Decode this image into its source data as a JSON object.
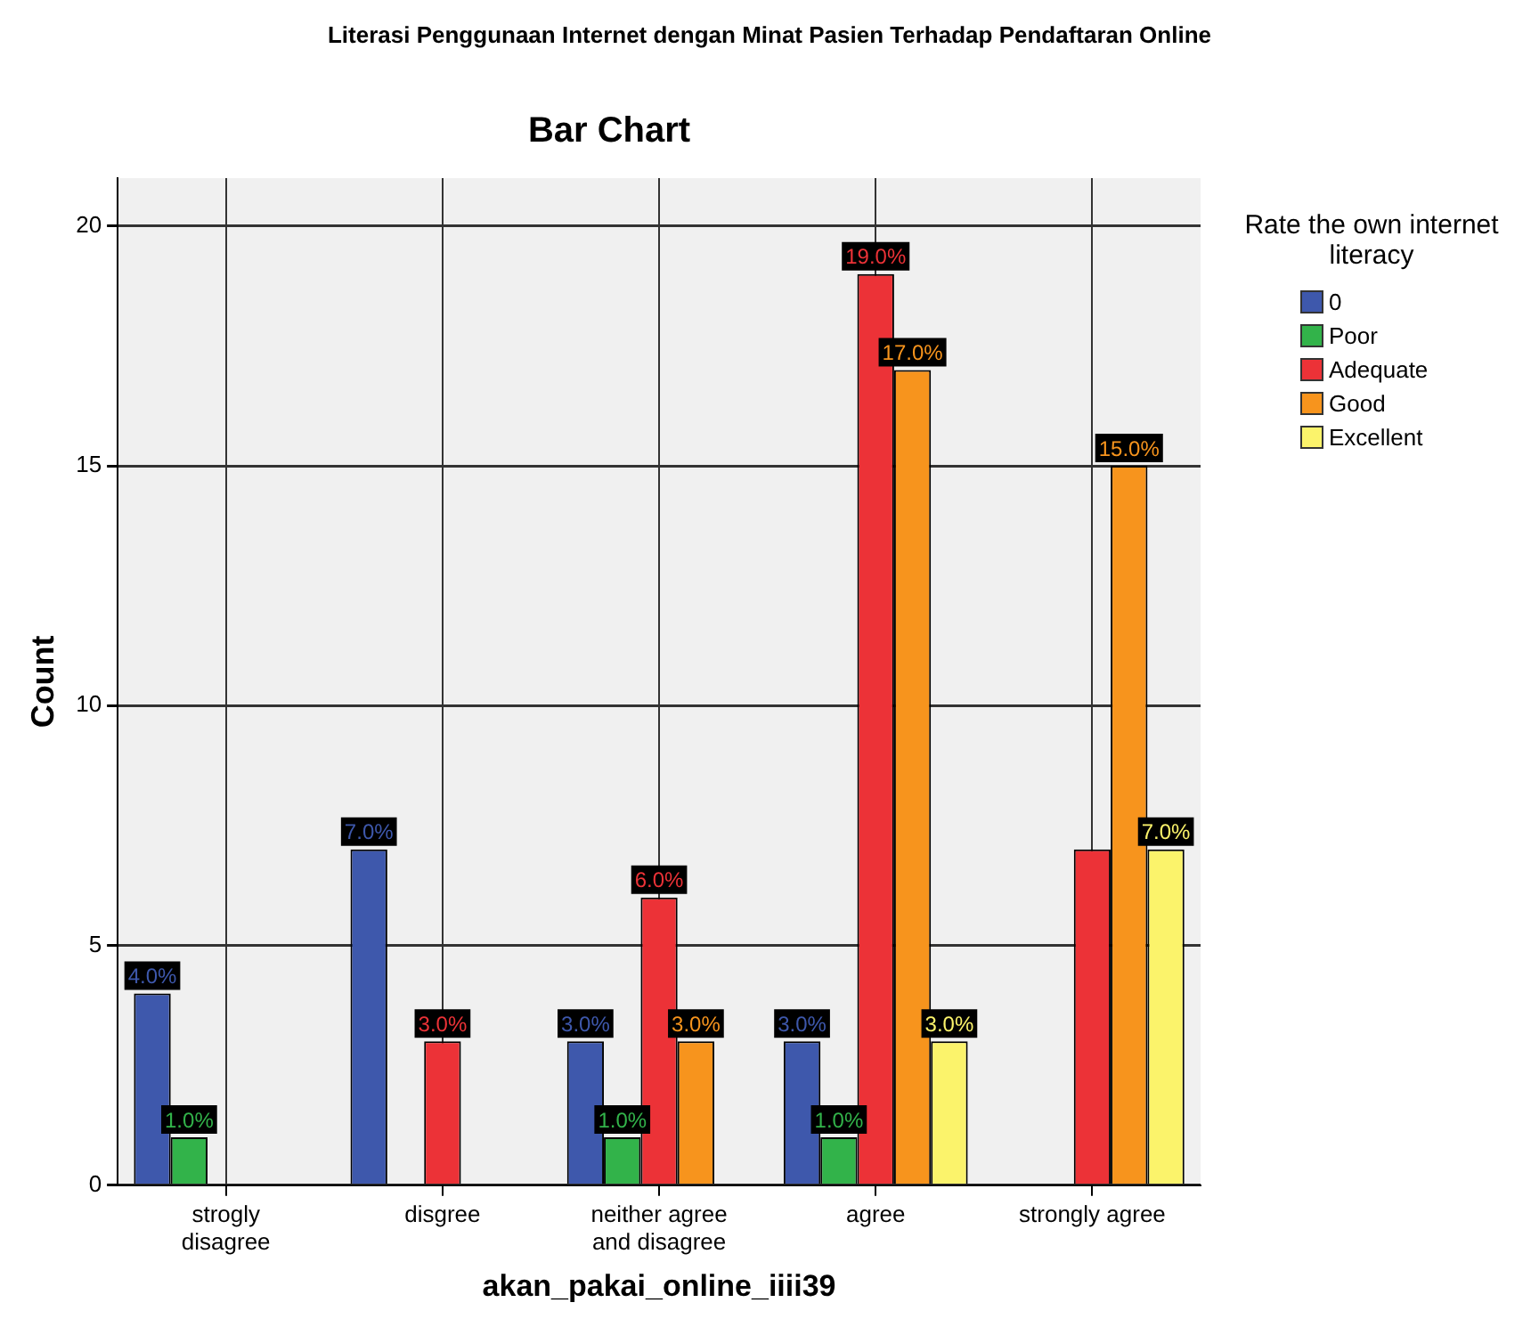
{
  "chart_data": {
    "type": "bar",
    "title": "Literasi Penggunaan Internet dengan Minat Pasien Terhadap Pendaftaran Online",
    "subtitle": "Bar Chart",
    "xlabel": "akan_pakai_online_iiii39",
    "ylabel": "Count",
    "legend_title": "Rate the own internet literacy",
    "categories": [
      "strogly disagree",
      "disgree",
      "neither agree and disagree",
      "agree",
      "strongly agree"
    ],
    "series": [
      {
        "name": "0",
        "color": "#3e58ac",
        "values": [
          4,
          7,
          3,
          3,
          null
        ],
        "value_labels": [
          "4.0%",
          "7.0%",
          "3.0%",
          "3.0%",
          null
        ]
      },
      {
        "name": "Poor",
        "color": "#32b34a",
        "values": [
          1,
          null,
          1,
          1,
          null
        ],
        "value_labels": [
          "1.0%",
          null,
          "1.0%",
          "1.0%",
          null
        ]
      },
      {
        "name": "Adequate",
        "color": "#ec3237",
        "values": [
          null,
          3,
          6,
          19,
          7
        ],
        "value_labels": [
          null,
          "3.0%",
          "6.0%",
          "19.0%",
          null
        ]
      },
      {
        "name": "Good",
        "color": "#f7941d",
        "values": [
          null,
          null,
          3,
          17,
          15
        ],
        "value_labels": [
          null,
          null,
          "3.0%",
          "17.0%",
          "15.0%"
        ]
      },
      {
        "name": "Excellent",
        "color": "#fbf36b",
        "values": [
          null,
          null,
          null,
          3,
          7
        ],
        "value_labels": [
          null,
          null,
          null,
          "3.0%",
          "7.0%"
        ]
      }
    ],
    "ylim": [
      0,
      21
    ],
    "yticks": [
      0,
      5,
      10,
      15,
      20
    ],
    "grid": true,
    "legend": "top right"
  }
}
